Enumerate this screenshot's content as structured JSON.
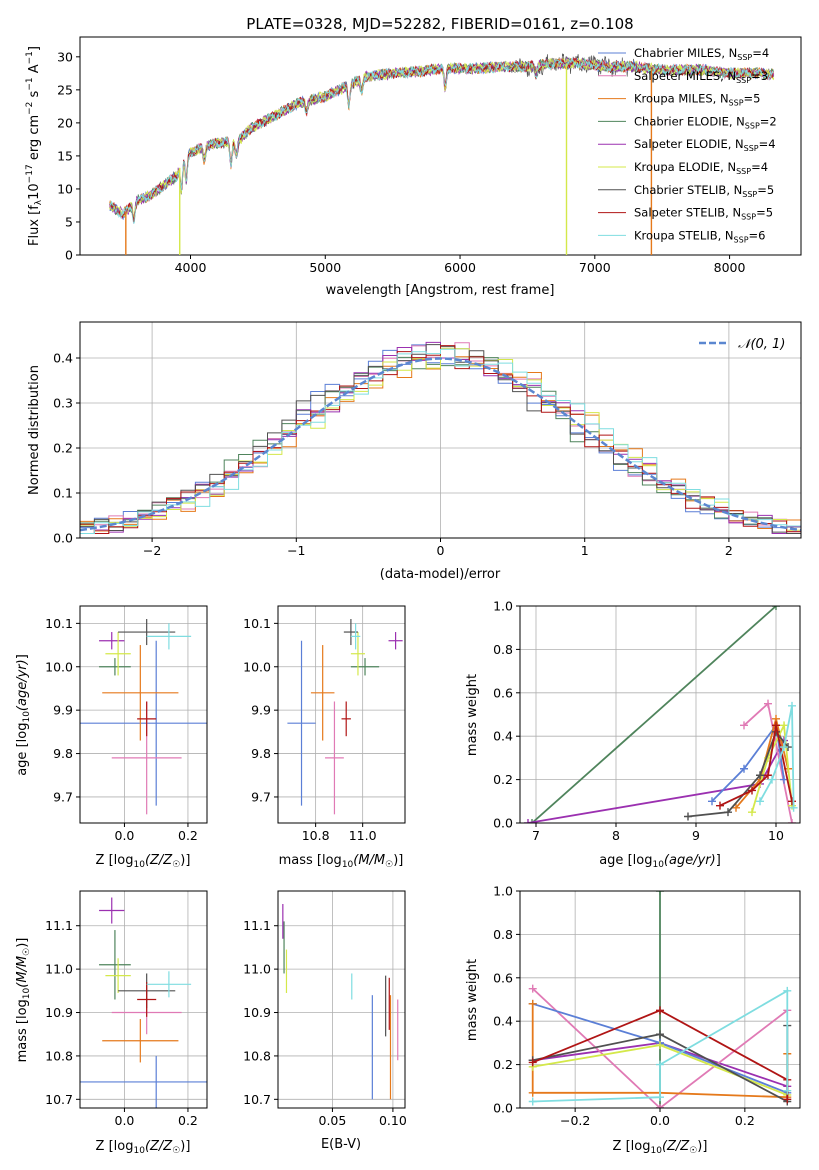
{
  "title": "PLATE=0328, MJD=52282, FIBERID=0161, z=0.108",
  "series": [
    {
      "name": "Chabrier MILES, N_SSP=4",
      "label": "Chabrier MILES, N",
      "sub": "SSP",
      "suffix": "=4",
      "color": "#5b7fd6"
    },
    {
      "name": "Salpeter MILES, N_SSP=3",
      "label": "Salpeter MILES, N",
      "sub": "SSP",
      "suffix": "=3",
      "color": "#e07ab5"
    },
    {
      "name": "Kroupa MILES, N_SSP=5",
      "label": "Kroupa MILES, N",
      "sub": "SSP",
      "suffix": "=5",
      "color": "#e5791b"
    },
    {
      "name": "Chabrier ELODIE, N_SSP=2",
      "label": "Chabrier ELODIE, N",
      "sub": "SSP",
      "suffix": "=2",
      "color": "#4f845c"
    },
    {
      "name": "Salpeter ELODIE, N_SSP=4",
      "label": "Salpeter ELODIE, N",
      "sub": "SSP",
      "suffix": "=4",
      "color": "#9b30b0"
    },
    {
      "name": "Kroupa ELODIE, N_SSP=4",
      "label": "Kroupa ELODIE, N",
      "sub": "SSP",
      "suffix": "=4",
      "color": "#d4e84a"
    },
    {
      "name": "Chabrier STELIB, N_SSP=5",
      "label": "Chabrier STELIB, N",
      "sub": "SSP",
      "suffix": "=5",
      "color": "#505050"
    },
    {
      "name": "Salpeter STELIB, N_SSP=5",
      "label": "Salpeter STELIB, N",
      "sub": "SSP",
      "suffix": "=5",
      "color": "#b01515"
    },
    {
      "name": "Kroupa STELIB, N_SSP=6",
      "label": "Kroupa STELIB, N",
      "sub": "SSP",
      "suffix": "=6",
      "color": "#7fdde0"
    }
  ],
  "chart_data": [
    {
      "id": "spectrum",
      "type": "line",
      "xlabel": "wavelength [Angstrom, rest frame]",
      "ylabel": "Flux [fλ10^-17 erg cm^-2 s^-1 A^-1]",
      "xlim": [
        3180,
        8530
      ],
      "ylim": [
        0,
        33
      ],
      "xticks": [
        4000,
        5000,
        6000,
        7000,
        8000
      ],
      "yticks": [
        0,
        5,
        10,
        15,
        20,
        25,
        30
      ],
      "grid": false,
      "legend": "top-right",
      "continuum": [
        [
          3400,
          7.5
        ],
        [
          3500,
          6.2
        ],
        [
          3600,
          8.2
        ],
        [
          3700,
          9.0
        ],
        [
          3800,
          10.5
        ],
        [
          3900,
          12.0
        ],
        [
          3950,
          15.0
        ],
        [
          4050,
          16.0
        ],
        [
          4200,
          17.0
        ],
        [
          4350,
          17.2
        ],
        [
          4450,
          19.2
        ],
        [
          4600,
          20.8
        ],
        [
          4800,
          23.0
        ],
        [
          5000,
          24.0
        ],
        [
          5150,
          25.5
        ],
        [
          5300,
          27.0
        ],
        [
          5500,
          27.5
        ],
        [
          5700,
          27.8
        ],
        [
          5900,
          28.3
        ],
        [
          6100,
          28.2
        ],
        [
          6300,
          28.5
        ],
        [
          6500,
          28.5
        ],
        [
          6700,
          29.0
        ],
        [
          6900,
          29.0
        ],
        [
          7100,
          28.5
        ],
        [
          7300,
          28.5
        ],
        [
          7500,
          28.0
        ],
        [
          7800,
          28.0
        ],
        [
          8000,
          27.5
        ],
        [
          8200,
          27.5
        ],
        [
          8330,
          27.3
        ]
      ],
      "absorption_features": [
        [
          3580,
          2.5
        ],
        [
          3933,
          4.0
        ],
        [
          3968,
          4.0
        ],
        [
          4102,
          2.0
        ],
        [
          4300,
          3.5
        ],
        [
          4340,
          2.0
        ],
        [
          4861,
          1.5
        ],
        [
          5175,
          3.0
        ],
        [
          5270,
          2.0
        ],
        [
          5890,
          3.0
        ],
        [
          6563,
          1.5
        ]
      ],
      "dropouts": [
        {
          "x": 3520,
          "color": "#e5791b"
        },
        {
          "x": 3920,
          "color": "#d4e84a"
        },
        {
          "x": 6790,
          "color": "#d4e84a"
        },
        {
          "x": 7420,
          "color": "#e5791b"
        }
      ],
      "noise_region": [
        6400,
        7300
      ]
    },
    {
      "id": "residuals",
      "type": "histogram",
      "xlabel": "(data-model)/error",
      "ylabel": "Normed distribution",
      "xlim": [
        -2.5,
        2.5
      ],
      "ylim": [
        0,
        0.48
      ],
      "xticks": [
        -2,
        -1,
        0,
        1,
        2
      ],
      "yticks": [
        0.0,
        0.1,
        0.2,
        0.3,
        0.4
      ],
      "grid": true,
      "legend": "top-right",
      "reference_curve": "N(0,1)",
      "reference_color": "#5b87d0",
      "bin_width": 0.1
    },
    {
      "id": "z-age",
      "type": "scatter",
      "xlabel": "Z [log10(Z/Z☉)]",
      "ylabel": "age [log10(age/yr)]",
      "xlim": [
        -0.14,
        0.26
      ],
      "ylim": [
        9.64,
        10.14
      ],
      "xticks": [
        0.0,
        0.2
      ],
      "yticks": [
        9.7,
        9.8,
        9.9,
        10.0,
        10.1
      ],
      "grid": true,
      "points": [
        {
          "x": 0.1,
          "y": 9.87,
          "xerr": 0.24,
          "yerr": 0.19,
          "color": "#5b7fd6"
        },
        {
          "x": 0.07,
          "y": 9.79,
          "xerr": 0.11,
          "yerr": 0.13,
          "color": "#e07ab5"
        },
        {
          "x": 0.05,
          "y": 9.94,
          "xerr": 0.12,
          "yerr": 0.11,
          "color": "#e5791b"
        },
        {
          "x": -0.03,
          "y": 10.0,
          "xerr": 0.05,
          "yerr": 0.02,
          "color": "#4f845c"
        },
        {
          "x": -0.04,
          "y": 10.06,
          "xerr": 0.04,
          "yerr": 0.02,
          "color": "#9b30b0"
        },
        {
          "x": -0.02,
          "y": 10.03,
          "xerr": 0.04,
          "yerr": 0.05,
          "color": "#d4e84a"
        },
        {
          "x": 0.07,
          "y": 10.08,
          "xerr": 0.09,
          "yerr": 0.03,
          "color": "#505050"
        },
        {
          "x": 0.07,
          "y": 9.88,
          "xerr": 0.03,
          "yerr": 0.04,
          "color": "#b01515"
        },
        {
          "x": 0.14,
          "y": 10.07,
          "xerr": 0.07,
          "yerr": 0.03,
          "color": "#7fdde0"
        }
      ]
    },
    {
      "id": "mass-age",
      "type": "scatter",
      "xlabel": "mass [log10(M/M☉)]",
      "ylabel": "",
      "xlim": [
        10.64,
        11.18
      ],
      "ylim": [
        9.64,
        10.14
      ],
      "xticks": [
        10.8,
        11.0
      ],
      "yticks": [
        9.7,
        9.8,
        9.9,
        10.0,
        10.1
      ],
      "grid": true,
      "points": [
        {
          "x": 10.74,
          "y": 9.87,
          "xerr": 0.06,
          "yerr": 0.19,
          "color": "#5b7fd6"
        },
        {
          "x": 10.88,
          "y": 9.79,
          "xerr": 0.04,
          "yerr": 0.13,
          "color": "#e07ab5"
        },
        {
          "x": 10.83,
          "y": 9.94,
          "xerr": 0.05,
          "yerr": 0.11,
          "color": "#e5791b"
        },
        {
          "x": 11.01,
          "y": 10.0,
          "xerr": 0.06,
          "yerr": 0.02,
          "color": "#4f845c"
        },
        {
          "x": 11.14,
          "y": 10.06,
          "xerr": 0.03,
          "yerr": 0.02,
          "color": "#9b30b0"
        },
        {
          "x": 10.98,
          "y": 10.03,
          "xerr": 0.03,
          "yerr": 0.05,
          "color": "#d4e84a"
        },
        {
          "x": 10.95,
          "y": 10.08,
          "xerr": 0.03,
          "yerr": 0.03,
          "color": "#505050"
        },
        {
          "x": 10.93,
          "y": 9.88,
          "xerr": 0.02,
          "yerr": 0.04,
          "color": "#b01515"
        },
        {
          "x": 10.97,
          "y": 10.07,
          "xerr": 0.02,
          "yerr": 0.03,
          "color": "#7fdde0"
        }
      ]
    },
    {
      "id": "age-weight",
      "type": "line",
      "xlabel": "age [log10(age/yr)]",
      "ylabel": "mass weight",
      "xlim": [
        6.8,
        10.3
      ],
      "ylim": [
        0.0,
        1.0
      ],
      "xticks": [
        7,
        8,
        9,
        10
      ],
      "yticks": [
        0.0,
        0.2,
        0.4,
        0.6,
        0.8,
        1.0
      ],
      "grid": true,
      "series": [
        {
          "color": "#4f845c",
          "points": [
            [
              6.95,
              0.0
            ],
            [
              10.0,
              1.0
            ]
          ]
        },
        {
          "color": "#9b30b0",
          "points": [
            [
              6.9,
              0.0
            ],
            [
              9.8,
              0.18
            ],
            [
              10.1,
              0.38
            ]
          ]
        },
        {
          "color": "#e07ab5",
          "points": [
            [
              9.6,
              0.45
            ],
            [
              9.9,
              0.55
            ],
            [
              10.2,
              0.0
            ]
          ]
        },
        {
          "color": "#5b7fd6",
          "points": [
            [
              9.2,
              0.1
            ],
            [
              9.6,
              0.25
            ],
            [
              10.0,
              0.45
            ],
            [
              10.1,
              0.2
            ]
          ]
        },
        {
          "color": "#e5791b",
          "points": [
            [
              9.5,
              0.07
            ],
            [
              9.8,
              0.2
            ],
            [
              10.0,
              0.48
            ],
            [
              10.15,
              0.25
            ]
          ]
        },
        {
          "color": "#d4e84a",
          "points": [
            [
              9.7,
              0.05
            ],
            [
              9.9,
              0.3
            ],
            [
              10.1,
              0.45
            ],
            [
              10.2,
              0.08
            ]
          ]
        },
        {
          "color": "#505050",
          "points": [
            [
              8.9,
              0.03
            ],
            [
              9.4,
              0.05
            ],
            [
              9.8,
              0.22
            ],
            [
              10.0,
              0.42
            ],
            [
              10.15,
              0.35
            ]
          ]
        },
        {
          "color": "#b01515",
          "points": [
            [
              9.3,
              0.08
            ],
            [
              9.7,
              0.15
            ],
            [
              9.9,
              0.22
            ],
            [
              10.0,
              0.45
            ],
            [
              10.2,
              0.1
            ]
          ]
        },
        {
          "color": "#7fdde0",
          "points": [
            [
              9.8,
              0.1
            ],
            [
              9.95,
              0.2
            ],
            [
              10.1,
              0.35
            ],
            [
              10.2,
              0.54
            ],
            [
              10.22,
              0.07
            ]
          ]
        }
      ]
    },
    {
      "id": "z-mass",
      "type": "scatter",
      "xlabel": "Z [log10(Z/Z☉)]",
      "ylabel": "mass [log10(M/M☉)]",
      "xlim": [
        -0.14,
        0.26
      ],
      "ylim": [
        10.68,
        11.18
      ],
      "xticks": [
        0.0,
        0.2
      ],
      "yticks": [
        10.7,
        10.8,
        10.9,
        11.0,
        11.1
      ],
      "grid": true,
      "points": [
        {
          "x": 0.1,
          "y": 10.74,
          "xerr": 0.24,
          "yerr": 0.06,
          "color": "#5b7fd6"
        },
        {
          "x": 0.07,
          "y": 10.9,
          "xerr": 0.11,
          "yerr": 0.05,
          "color": "#e07ab5"
        },
        {
          "x": 0.05,
          "y": 10.835,
          "xerr": 0.12,
          "yerr": 0.05,
          "color": "#e5791b"
        },
        {
          "x": -0.03,
          "y": 11.01,
          "xerr": 0.05,
          "yerr": 0.08,
          "color": "#4f845c"
        },
        {
          "x": -0.04,
          "y": 11.135,
          "xerr": 0.04,
          "yerr": 0.03,
          "color": "#9b30b0"
        },
        {
          "x": -0.02,
          "y": 10.985,
          "xerr": 0.04,
          "yerr": 0.04,
          "color": "#d4e84a"
        },
        {
          "x": 0.07,
          "y": 10.95,
          "xerr": 0.09,
          "yerr": 0.04,
          "color": "#505050"
        },
        {
          "x": 0.07,
          "y": 10.93,
          "xerr": 0.03,
          "yerr": 0.04,
          "color": "#b01515"
        },
        {
          "x": 0.14,
          "y": 10.965,
          "xerr": 0.07,
          "yerr": 0.03,
          "color": "#7fdde0"
        }
      ]
    },
    {
      "id": "ebv-mass",
      "type": "scatter",
      "xlabel": "E(B-V)",
      "ylabel": "",
      "xlim": [
        0.005,
        0.11
      ],
      "ylim": [
        10.68,
        11.18
      ],
      "xticks": [
        0.05,
        0.1
      ],
      "yticks": [
        10.7,
        10.8,
        10.9,
        11.0,
        11.1
      ],
      "grid": true,
      "points": [
        {
          "x": 0.083,
          "y": 10.82,
          "xerr": 0,
          "yerr": 0.12,
          "color": "#5b7fd6"
        },
        {
          "x": 0.104,
          "y": 10.86,
          "xerr": 0,
          "yerr": 0.07,
          "color": "#e07ab5"
        },
        {
          "x": 0.098,
          "y": 10.82,
          "xerr": 0,
          "yerr": 0.12,
          "color": "#e5791b"
        },
        {
          "x": 0.01,
          "y": 11.05,
          "xerr": 0,
          "yerr": 0.06,
          "color": "#4f845c"
        },
        {
          "x": 0.009,
          "y": 11.11,
          "xerr": 0,
          "yerr": 0.04,
          "color": "#9b30b0"
        },
        {
          "x": 0.012,
          "y": 10.995,
          "xerr": 0,
          "yerr": 0.05,
          "color": "#d4e84a"
        },
        {
          "x": 0.094,
          "y": 10.915,
          "xerr": 0,
          "yerr": 0.07,
          "color": "#505050"
        },
        {
          "x": 0.097,
          "y": 10.92,
          "xerr": 0,
          "yerr": 0.06,
          "color": "#b01515"
        },
        {
          "x": 0.066,
          "y": 10.96,
          "xerr": 0,
          "yerr": 0.03,
          "color": "#7fdde0"
        }
      ]
    },
    {
      "id": "z-weight",
      "type": "line",
      "xlabel": "Z [log10(Z/Z☉)]",
      "ylabel": "mass weight",
      "xlim": [
        -0.33,
        0.33
      ],
      "ylim": [
        0.0,
        1.0
      ],
      "xticks": [
        -0.2,
        0.0,
        0.2
      ],
      "yticks": [
        0.0,
        0.2,
        0.4,
        0.6,
        0.8,
        1.0
      ],
      "grid": true,
      "series": [
        {
          "color": "#4f845c",
          "points": [
            [
              0.0,
              0.0
            ],
            [
              0.0,
              1.0
            ]
          ]
        },
        {
          "color": "#9b30b0",
          "points": [
            [
              -0.3,
              0.22
            ],
            [
              0.0,
              0.3
            ],
            [
              0.3,
              0.1
            ]
          ]
        },
        {
          "color": "#e07ab5",
          "points": [
            [
              -0.3,
              0.55
            ],
            [
              0.0,
              0.0
            ],
            [
              0.3,
              0.45
            ]
          ]
        },
        {
          "color": "#5b7fd6",
          "points": [
            [
              -0.3,
              0.48
            ],
            [
              0.0,
              0.3
            ],
            [
              0.3,
              0.07
            ]
          ]
        },
        {
          "color": "#e5791b",
          "points": [
            [
              -0.3,
              0.48
            ],
            [
              -0.3,
              0.07
            ],
            [
              0.0,
              0.07
            ],
            [
              0.3,
              0.05
            ],
            [
              0.3,
              0.25
            ]
          ]
        },
        {
          "color": "#d4e84a",
          "points": [
            [
              -0.3,
              0.19
            ],
            [
              0.0,
              0.29
            ],
            [
              0.3,
              0.06
            ]
          ]
        },
        {
          "color": "#505050",
          "points": [
            [
              -0.3,
              0.22
            ],
            [
              0.0,
              0.34
            ],
            [
              0.3,
              0.03
            ],
            [
              0.3,
              0.38
            ]
          ]
        },
        {
          "color": "#b01515",
          "points": [
            [
              -0.3,
              0.21
            ],
            [
              0.0,
              0.45
            ],
            [
              0.3,
              0.13
            ],
            [
              0.3,
              0.04
            ]
          ]
        },
        {
          "color": "#7fdde0",
          "points": [
            [
              -0.3,
              0.03
            ],
            [
              0.0,
              0.05
            ],
            [
              0.0,
              0.2
            ],
            [
              0.3,
              0.54
            ],
            [
              0.3,
              0.08
            ]
          ]
        }
      ]
    }
  ]
}
